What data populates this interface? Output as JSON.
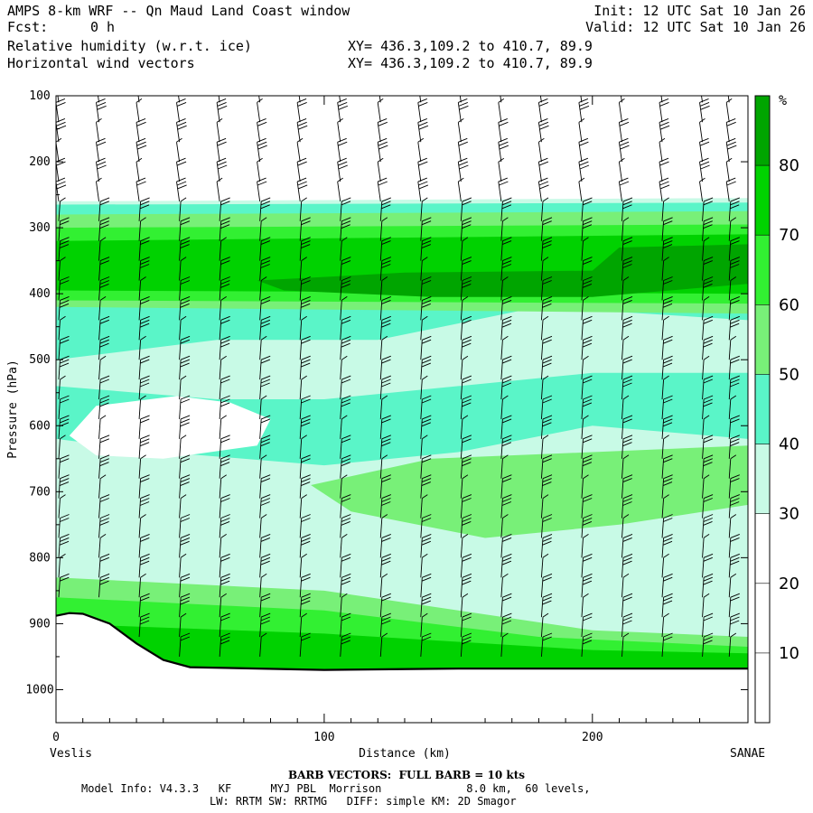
{
  "header": {
    "title": "AMPS 8-km WRF -- Qn Maud Land Coast window",
    "init": "Init: 12 UTC Sat 10 Jan 26",
    "fcst_label": "Fcst:",
    "fcst_value": "0 h",
    "valid": "Valid: 12 UTC Sat 10 Jan 26",
    "field1": "Relative humidity (w.r.t. ice)",
    "field1_xy": "XY= 436.3,109.2 to 410.7, 89.9",
    "field2": "Horizontal wind vectors",
    "field2_xy": "XY= 436.3,109.2 to 410.7, 89.9"
  },
  "footer": {
    "barb_note": "BARB VECTORS:  FULL BARB = 10 kts",
    "model_line1": "Model Info: V4.3.3   KF      MYJ PBL  Morrison             8.0 km,  60 levels,",
    "model_line2": "LW: RRTM SW: RRTMG   DIFF: simple KM: 2D Smagor"
  },
  "chart_data": {
    "type": "heatmap",
    "title": "Relative humidity (w.r.t. ice) with horizontal wind vectors",
    "xlabel": "Distance (km)",
    "ylabel": "Pressure (hPa)",
    "xlim": [
      0,
      258
    ],
    "ylim": [
      1050,
      100
    ],
    "x_ticks": [
      "0",
      "100",
      "200"
    ],
    "y_ticks": [
      "100",
      "200",
      "300",
      "400",
      "500",
      "600",
      "700",
      "800",
      "900",
      "1000"
    ],
    "x_end_labels": {
      "left": "Veslis",
      "right": "SANAE"
    },
    "colorbar": {
      "unit": "%",
      "levels": [
        0,
        10,
        20,
        30,
        40,
        50,
        60,
        70,
        80,
        100
      ],
      "labels": [
        "10",
        "20",
        "30",
        "40",
        "50",
        "60",
        "70",
        "80"
      ],
      "colors": [
        "#ffffff",
        "#ffffff",
        "#ffffff",
        "#c8fae6",
        "#5af5c8",
        "#78f078",
        "#32f032",
        "#00d200",
        "#00a500"
      ]
    },
    "rh_bands": [
      {
        "level": "30",
        "polygon": [
          [
            0,
            260
          ],
          [
            258,
            255
          ],
          [
            258,
            1050
          ],
          [
            0,
            1050
          ]
        ]
      },
      {
        "level": "40",
        "polygon": [
          [
            0,
            265
          ],
          [
            258,
            262
          ],
          [
            258,
            440
          ],
          [
            180,
            420
          ],
          [
            120,
            470
          ],
          [
            60,
            470
          ],
          [
            0,
            500
          ],
          [
            0,
            540
          ],
          [
            60,
            560
          ],
          [
            100,
            560
          ],
          [
            150,
            540
          ],
          [
            200,
            520
          ],
          [
            258,
            520
          ],
          [
            258,
            620
          ],
          [
            200,
            600
          ],
          [
            150,
            640
          ],
          [
            100,
            660
          ],
          [
            40,
            640
          ],
          [
            0,
            620
          ],
          [
            0,
            1050
          ]
        ]
      },
      {
        "level": "50",
        "polygon": [
          [
            0,
            280
          ],
          [
            258,
            275
          ],
          [
            258,
            430
          ],
          [
            0,
            420
          ]
        ]
      },
      {
        "level": "50",
        "polygon": [
          [
            0,
            830
          ],
          [
            100,
            850
          ],
          [
            150,
            880
          ],
          [
            200,
            910
          ],
          [
            258,
            920
          ],
          [
            258,
            1050
          ],
          [
            0,
            1050
          ]
        ]
      },
      {
        "level": "50",
        "polygon": [
          [
            95,
            690
          ],
          [
            140,
            650
          ],
          [
            200,
            640
          ],
          [
            258,
            630
          ],
          [
            258,
            720
          ],
          [
            210,
            750
          ],
          [
            160,
            770
          ],
          [
            110,
            730
          ]
        ]
      },
      {
        "level": "60",
        "polygon": [
          [
            0,
            300
          ],
          [
            258,
            295
          ],
          [
            258,
            415
          ],
          [
            0,
            410
          ]
        ]
      },
      {
        "level": "60",
        "polygon": [
          [
            0,
            860
          ],
          [
            100,
            880
          ],
          [
            180,
            920
          ],
          [
            258,
            935
          ],
          [
            258,
            1050
          ],
          [
            0,
            1050
          ]
        ]
      },
      {
        "level": "70",
        "polygon": [
          [
            0,
            320
          ],
          [
            258,
            310
          ],
          [
            258,
            400
          ],
          [
            0,
            395
          ]
        ]
      },
      {
        "level": "70",
        "polygon": [
          [
            0,
            900
          ],
          [
            100,
            915
          ],
          [
            200,
            940
          ],
          [
            258,
            945
          ],
          [
            258,
            1050
          ],
          [
            0,
            1050
          ]
        ]
      },
      {
        "level": "80",
        "polygon": [
          [
            75,
            380
          ],
          [
            130,
            368
          ],
          [
            200,
            365
          ],
          [
            210,
            330
          ],
          [
            258,
            325
          ],
          [
            258,
            385
          ],
          [
            200,
            405
          ],
          [
            140,
            405
          ],
          [
            85,
            395
          ]
        ]
      }
    ],
    "white_dry_region": {
      "level": "20",
      "polygon": [
        [
          15,
          570
        ],
        [
          45,
          555
        ],
        [
          65,
          565
        ],
        [
          80,
          590
        ],
        [
          75,
          630
        ],
        [
          40,
          650
        ],
        [
          15,
          645
        ],
        [
          5,
          615
        ]
      ]
    },
    "terrain_hPa": {
      "x": [
        0,
        5,
        10,
        20,
        30,
        40,
        50,
        75,
        100,
        150,
        200,
        258
      ],
      "p": [
        888,
        884,
        885,
        900,
        930,
        955,
        966,
        968,
        970,
        968,
        968,
        968
      ]
    },
    "wind_barbs": {
      "columns_km": [
        0,
        15,
        30,
        45,
        60,
        75,
        90,
        105,
        120,
        135,
        150,
        165,
        180,
        195,
        210,
        225,
        240,
        250
      ],
      "levels_hPa": [
        110,
        140,
        170,
        200,
        230,
        260,
        290,
        320,
        350,
        380,
        410,
        440,
        470,
        500,
        530,
        560,
        590,
        620,
        650,
        680,
        710,
        740,
        770,
        800,
        830,
        860,
        890,
        920,
        950
      ],
      "full_barb_kts": 10
    }
  }
}
